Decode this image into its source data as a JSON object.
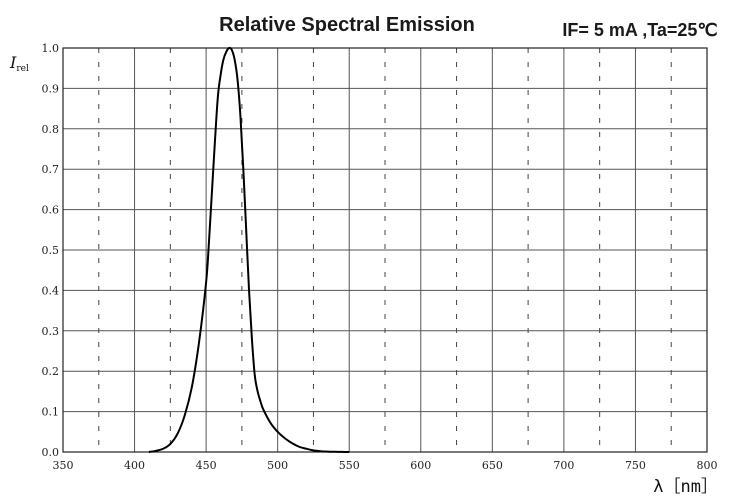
{
  "chart_data": {
    "type": "line",
    "title": "Relative Spectral Emission",
    "subtitle": "IF= 5 mA ,Ta=25℃",
    "ylabel_main": "I",
    "ylabel_sub": "rel",
    "xlabel": "λ［nm］",
    "xlim": [
      350,
      800
    ],
    "ylim": [
      0,
      1.0
    ],
    "xticks": [
      350,
      400,
      450,
      500,
      550,
      600,
      650,
      700,
      750,
      800
    ],
    "xtick_labels": [
      "350",
      "400",
      "450",
      "500",
      "550",
      "600",
      "650",
      "700",
      "750",
      "800"
    ],
    "yticks": [
      0,
      0.1,
      0.2,
      0.3,
      0.4,
      0.5,
      0.6,
      0.7,
      0.8,
      0.9,
      1.0
    ],
    "ytick_labels": [
      "0.0",
      "0.1",
      "0.2",
      "0.3",
      "0.4",
      "0.5",
      "0.6",
      "0.7",
      "0.8",
      "0.9",
      "1.0"
    ],
    "minor_x_dashed": [
      375,
      425,
      475,
      525,
      575,
      625,
      675,
      725,
      775
    ],
    "grid": true,
    "series": [
      {
        "color": "#000000",
        "x": [
          410,
          415,
          420,
          425,
          430,
          435,
          440,
          445,
          450,
          452,
          455,
          458,
          460,
          462,
          464,
          466,
          468,
          470,
          472,
          474,
          476,
          478,
          480,
          482,
          484,
          486,
          488,
          490,
          495,
          500,
          505,
          510,
          515,
          520,
          525,
          530,
          535,
          540,
          545,
          550
        ],
        "y": [
          0.0,
          0.003,
          0.008,
          0.02,
          0.045,
          0.09,
          0.16,
          0.27,
          0.42,
          0.52,
          0.7,
          0.87,
          0.93,
          0.97,
          0.99,
          1.0,
          0.995,
          0.97,
          0.92,
          0.83,
          0.7,
          0.55,
          0.4,
          0.28,
          0.19,
          0.15,
          0.125,
          0.105,
          0.072,
          0.05,
          0.034,
          0.022,
          0.013,
          0.008,
          0.004,
          0.002,
          0.001,
          0.0005,
          0.0002,
          0.0
        ]
      }
    ]
  }
}
